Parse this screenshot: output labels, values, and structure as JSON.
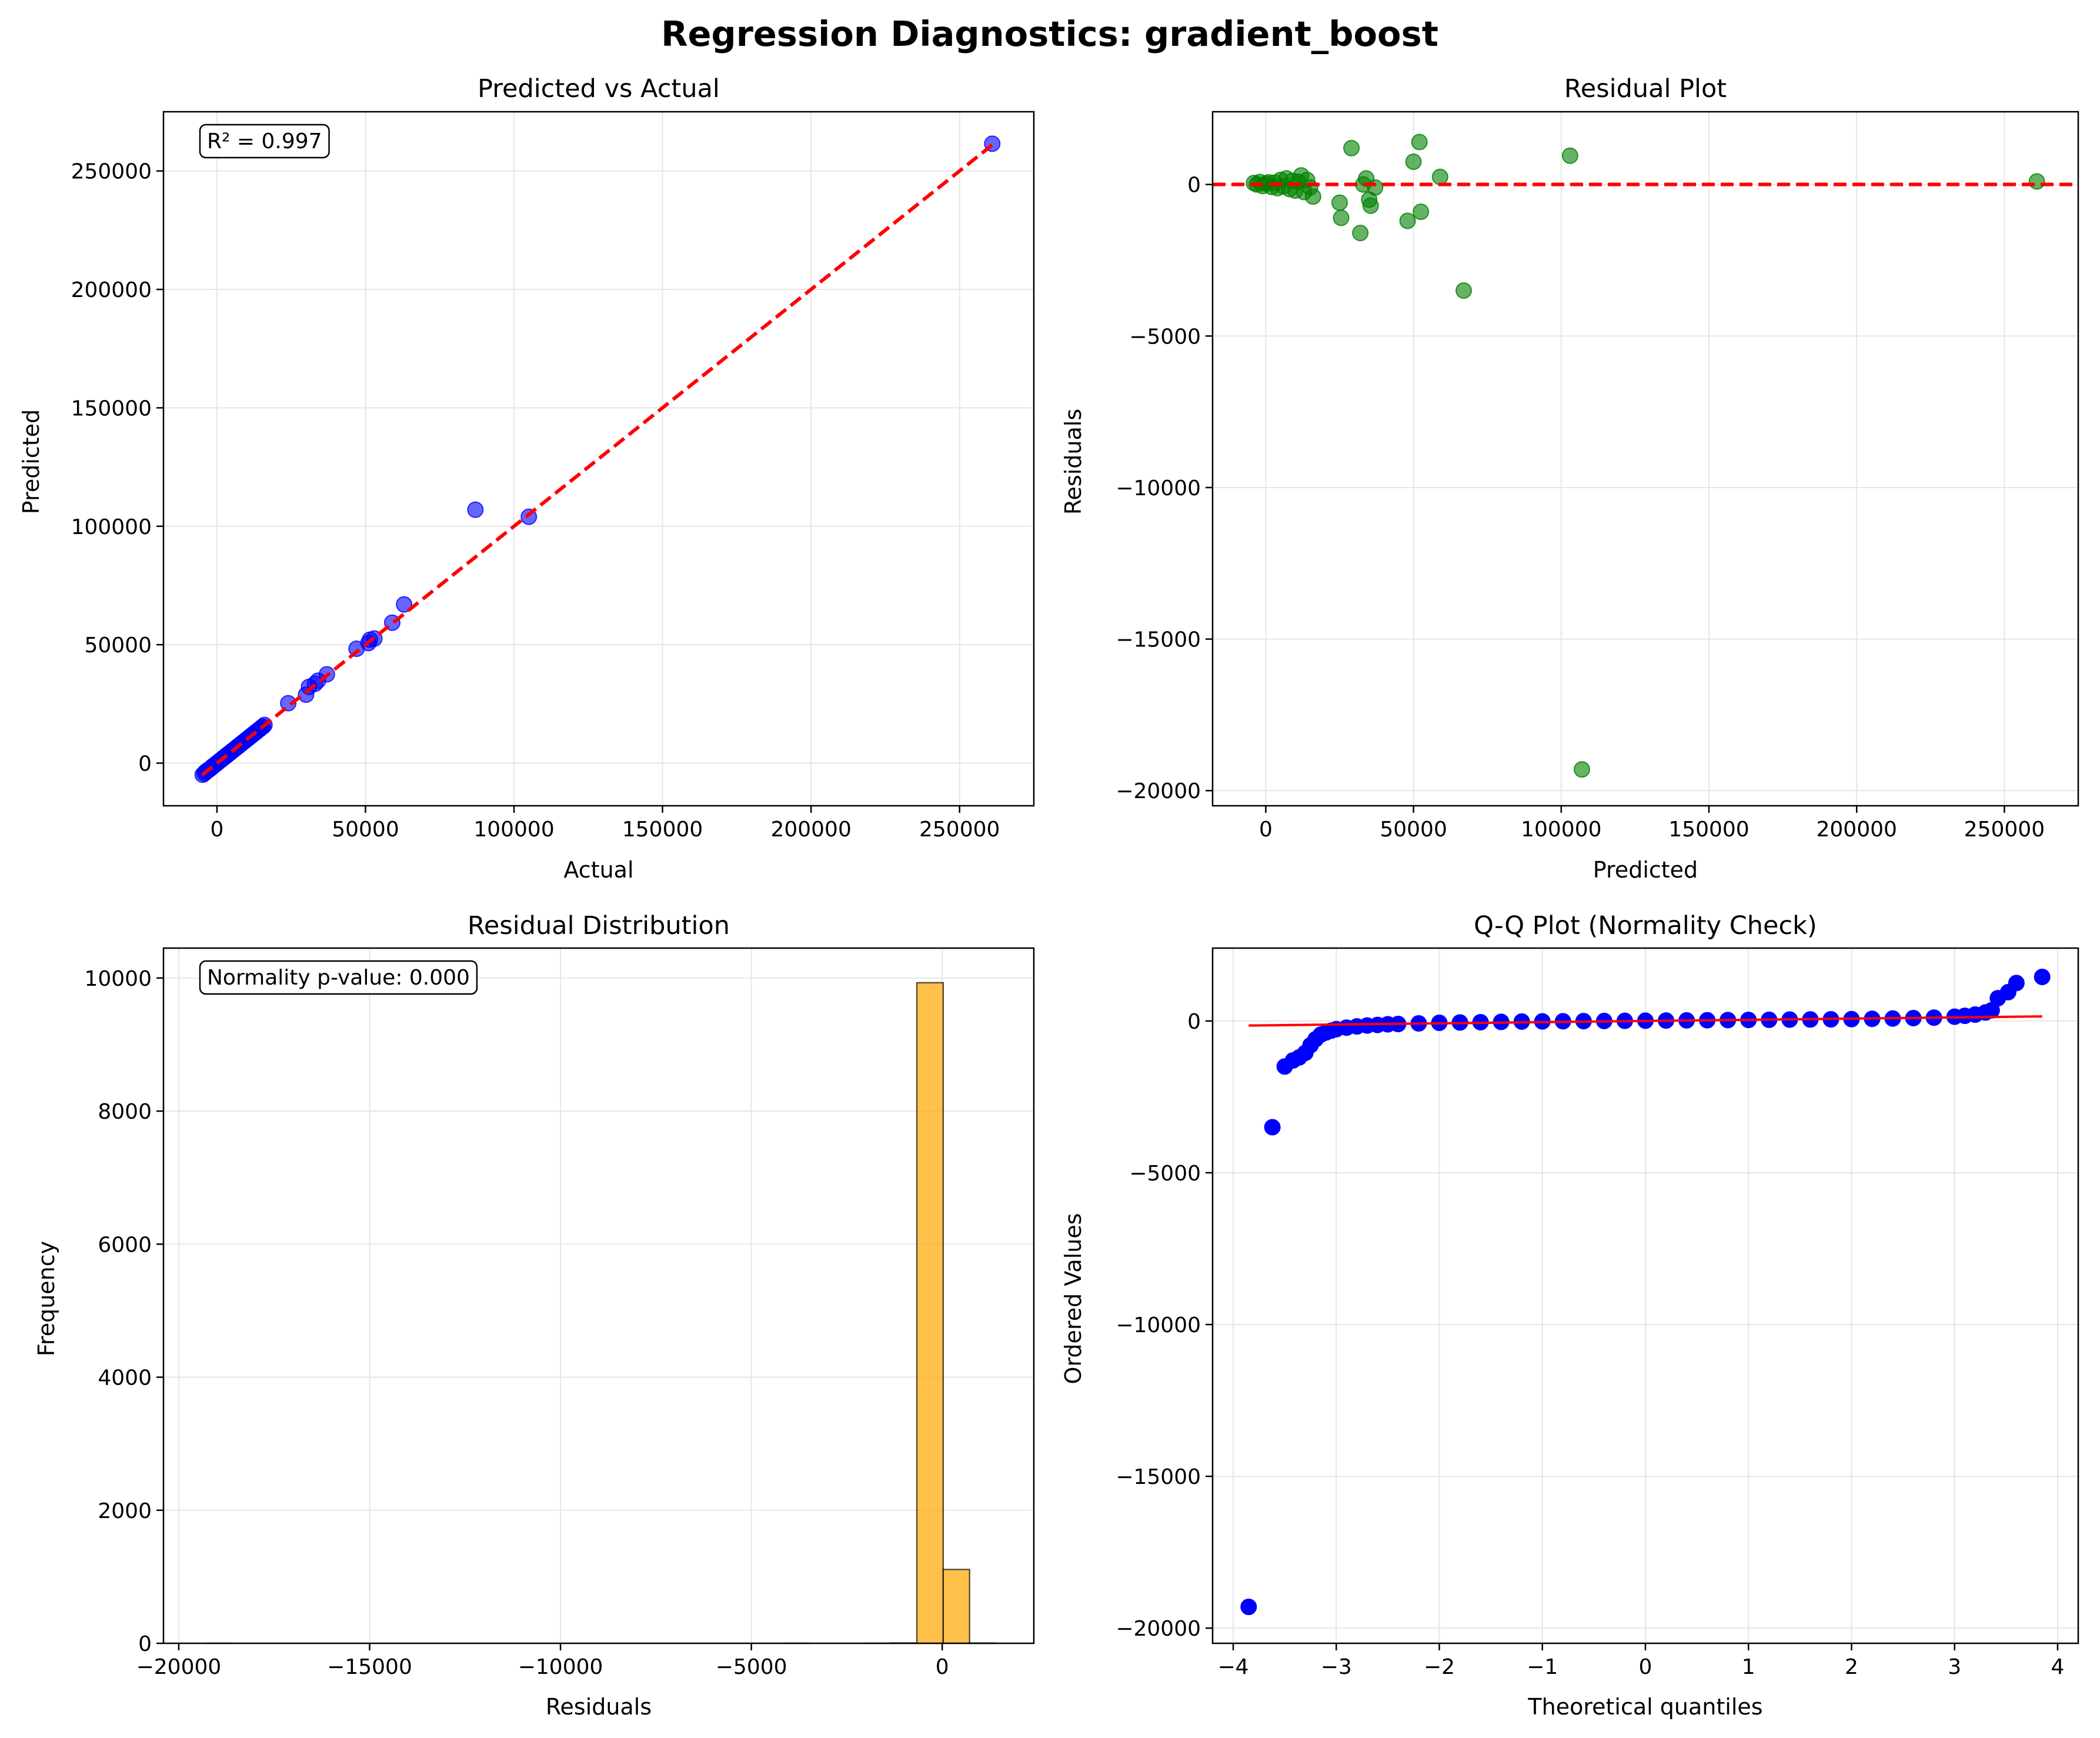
{
  "figure": {
    "suptitle": "Regression Diagnostics: gradient_boost"
  },
  "colors": {
    "actual_points": "#0000ff",
    "residual_points": "#008000",
    "histogram_bars": "#ffa500",
    "reference_line": "#ff0000",
    "qq_points": "#0000ff",
    "grid": "#e6e6e6"
  },
  "chart_data": [
    {
      "id": "pva",
      "type": "scatter",
      "title": "Predicted vs Actual",
      "xlabel": "Actual",
      "ylabel": "Predicted",
      "xlim": [
        -18000,
        275000
      ],
      "ylim": [
        -18000,
        275000
      ],
      "xticks": [
        0,
        50000,
        100000,
        150000,
        200000,
        250000
      ],
      "yticks": [
        0,
        50000,
        100000,
        150000,
        200000,
        250000
      ],
      "grid": true,
      "annotation": "R² = 0.997",
      "annotation_position": "top-left",
      "points": [
        [
          -4800,
          -4900
        ],
        [
          -4200,
          -4300
        ],
        [
          -3800,
          -3600
        ],
        [
          -3300,
          -3400
        ],
        [
          -2900,
          -2800
        ],
        [
          -2500,
          -2600
        ],
        [
          -2000,
          -2100
        ],
        [
          -1600,
          -1500
        ],
        [
          -1200,
          -1300
        ],
        [
          -800,
          -700
        ],
        [
          -300,
          -400
        ],
        [
          0,
          100
        ],
        [
          500,
          400
        ],
        [
          1000,
          1100
        ],
        [
          1500,
          1400
        ],
        [
          2000,
          2100
        ],
        [
          2500,
          2400
        ],
        [
          3000,
          3100
        ],
        [
          3500,
          3400
        ],
        [
          4000,
          4100
        ],
        [
          4500,
          4400
        ],
        [
          5000,
          5100
        ],
        [
          5500,
          5400
        ],
        [
          6000,
          6100
        ],
        [
          6500,
          6400
        ],
        [
          7000,
          7100
        ],
        [
          7500,
          7400
        ],
        [
          8000,
          8100
        ],
        [
          8500,
          8400
        ],
        [
          9000,
          9100
        ],
        [
          9500,
          9400
        ],
        [
          10000,
          10100
        ],
        [
          10500,
          10400
        ],
        [
          11000,
          11100
        ],
        [
          11500,
          11400
        ],
        [
          12000,
          12100
        ],
        [
          12500,
          12400
        ],
        [
          13000,
          13100
        ],
        [
          13500,
          13400
        ],
        [
          14000,
          14100
        ],
        [
          14500,
          14400
        ],
        [
          15000,
          15100
        ],
        [
          15500,
          15400
        ],
        [
          16000,
          16100
        ],
        [
          24000,
          25300
        ],
        [
          30000,
          28900
        ],
        [
          31000,
          32200
        ],
        [
          33000,
          33500
        ],
        [
          34000,
          34800
        ],
        [
          37000,
          37500
        ],
        [
          47000,
          48300
        ],
        [
          51000,
          50700
        ],
        [
          51500,
          52100
        ],
        [
          53000,
          52600
        ],
        [
          59000,
          59300
        ],
        [
          63000,
          67000
        ],
        [
          87000,
          107000
        ],
        [
          105000,
          104000
        ],
        [
          261000,
          261500
        ]
      ],
      "reference_line": [
        [
          -5000,
          -5000
        ],
        [
          261000,
          261000
        ]
      ]
    },
    {
      "id": "res",
      "type": "scatter",
      "title": "Residual Plot",
      "xlabel": "Predicted",
      "ylabel": "Residuals",
      "xlim": [
        -18000,
        275000
      ],
      "ylim": [
        -20500,
        2400
      ],
      "xticks": [
        0,
        50000,
        100000,
        150000,
        200000,
        250000
      ],
      "yticks": [
        -20000,
        -15000,
        -10000,
        -5000,
        0
      ],
      "grid": true,
      "reference_y": 0,
      "points": [
        [
          -4000,
          50
        ],
        [
          -3000,
          0
        ],
        [
          -2000,
          80
        ],
        [
          -1000,
          -50
        ],
        [
          0,
          30
        ],
        [
          1000,
          70
        ],
        [
          2000,
          -80
        ],
        [
          3000,
          60
        ],
        [
          4000,
          -120
        ],
        [
          5000,
          150
        ],
        [
          6000,
          -60
        ],
        [
          7000,
          200
        ],
        [
          8000,
          -150
        ],
        [
          9000,
          120
        ],
        [
          10000,
          -200
        ],
        [
          11000,
          90
        ],
        [
          12000,
          300
        ],
        [
          13000,
          -250
        ],
        [
          14000,
          150
        ],
        [
          15000,
          -100
        ],
        [
          16000,
          -400
        ],
        [
          25000,
          -600
        ],
        [
          25500,
          -1100
        ],
        [
          29000,
          1200
        ],
        [
          32000,
          -1600
        ],
        [
          33000,
          0
        ],
        [
          34000,
          200
        ],
        [
          35000,
          -500
        ],
        [
          35500,
          -700
        ],
        [
          37000,
          -100
        ],
        [
          48000,
          -1200
        ],
        [
          50000,
          750
        ],
        [
          52000,
          1400
        ],
        [
          52500,
          -900
        ],
        [
          59000,
          250
        ],
        [
          67000,
          -3500
        ],
        [
          103000,
          950
        ],
        [
          107000,
          -19300
        ],
        [
          261000,
          100
        ]
      ]
    },
    {
      "id": "hist",
      "type": "bar",
      "title": "Residual Distribution",
      "xlabel": "Residuals",
      "ylabel": "Frequency",
      "xlim": [
        -20400,
        2400
      ],
      "ylim": [
        0,
        10450
      ],
      "xticks": [
        -20000,
        -15000,
        -10000,
        -5000,
        0
      ],
      "yticks": [
        0,
        2000,
        4000,
        6000,
        8000,
        10000
      ],
      "grid": true,
      "annotation": "Normality p-value: 0.000",
      "annotation_position": "top-left",
      "bin_width": 691,
      "bins": [
        [
          -19322,
          1
        ],
        [
          -18631,
          0
        ],
        [
          -17940,
          0
        ],
        [
          -17249,
          0
        ],
        [
          -16558,
          0
        ],
        [
          -15867,
          0
        ],
        [
          -15176,
          0
        ],
        [
          -14485,
          0
        ],
        [
          -13794,
          0
        ],
        [
          -13103,
          0
        ],
        [
          -12412,
          0
        ],
        [
          -11721,
          0
        ],
        [
          -11030,
          0
        ],
        [
          -10339,
          0
        ],
        [
          -9648,
          0
        ],
        [
          -8957,
          0
        ],
        [
          -8266,
          0
        ],
        [
          -7575,
          0
        ],
        [
          -6884,
          0
        ],
        [
          -6193,
          0
        ],
        [
          -5502,
          0
        ],
        [
          -4811,
          0
        ],
        [
          -4120,
          1
        ],
        [
          -3429,
          0
        ],
        [
          -2738,
          0
        ],
        [
          -2047,
          2
        ],
        [
          -1356,
          5
        ],
        [
          -665,
          9930
        ],
        [
          26,
          1110
        ],
        [
          717,
          4
        ]
      ]
    },
    {
      "id": "qq",
      "type": "scatter",
      "title": "Q-Q Plot (Normality Check)",
      "xlabel": "Theoretical quantiles",
      "ylabel": "Ordered Values",
      "xlim": [
        -4.2,
        4.2
      ],
      "ylim": [
        -20500,
        2400
      ],
      "xticks": [
        -4,
        -3,
        -2,
        -1,
        0,
        1,
        2,
        3,
        4
      ],
      "yticks": [
        -20000,
        -15000,
        -10000,
        -5000,
        0
      ],
      "grid": true,
      "fit_line": [
        [
          -3.85,
          -150
        ],
        [
          3.85,
          150
        ]
      ],
      "points": [
        [
          -3.85,
          -19300
        ],
        [
          -3.62,
          -3500
        ],
        [
          -3.5,
          -1500
        ],
        [
          -3.42,
          -1300
        ],
        [
          -3.36,
          -1200
        ],
        [
          -3.3,
          -1050
        ],
        [
          -3.25,
          -800
        ],
        [
          -3.2,
          -600
        ],
        [
          -3.15,
          -450
        ],
        [
          -3.1,
          -380
        ],
        [
          -3.05,
          -320
        ],
        [
          -3.0,
          -270
        ],
        [
          -2.9,
          -220
        ],
        [
          -2.8,
          -180
        ],
        [
          -2.7,
          -150
        ],
        [
          -2.6,
          -130
        ],
        [
          -2.5,
          -110
        ],
        [
          -2.4,
          -100
        ],
        [
          -2.2,
          -80
        ],
        [
          -2.0,
          -60
        ],
        [
          -1.8,
          -50
        ],
        [
          -1.6,
          -40
        ],
        [
          -1.4,
          -30
        ],
        [
          -1.2,
          -20
        ],
        [
          -1.0,
          -15
        ],
        [
          -0.8,
          -10
        ],
        [
          -0.6,
          -5
        ],
        [
          -0.4,
          0
        ],
        [
          -0.2,
          5
        ],
        [
          0.0,
          10
        ],
        [
          0.2,
          15
        ],
        [
          0.4,
          20
        ],
        [
          0.6,
          25
        ],
        [
          0.8,
          30
        ],
        [
          1.0,
          35
        ],
        [
          1.2,
          40
        ],
        [
          1.4,
          45
        ],
        [
          1.6,
          50
        ],
        [
          1.8,
          55
        ],
        [
          2.0,
          60
        ],
        [
          2.2,
          70
        ],
        [
          2.4,
          80
        ],
        [
          2.6,
          95
        ],
        [
          2.8,
          110
        ],
        [
          3.0,
          140
        ],
        [
          3.1,
          170
        ],
        [
          3.2,
          210
        ],
        [
          3.3,
          280
        ],
        [
          3.36,
          350
        ],
        [
          3.42,
          750
        ],
        [
          3.52,
          950
        ],
        [
          3.6,
          1250
        ],
        [
          3.85,
          1450
        ]
      ]
    }
  ]
}
